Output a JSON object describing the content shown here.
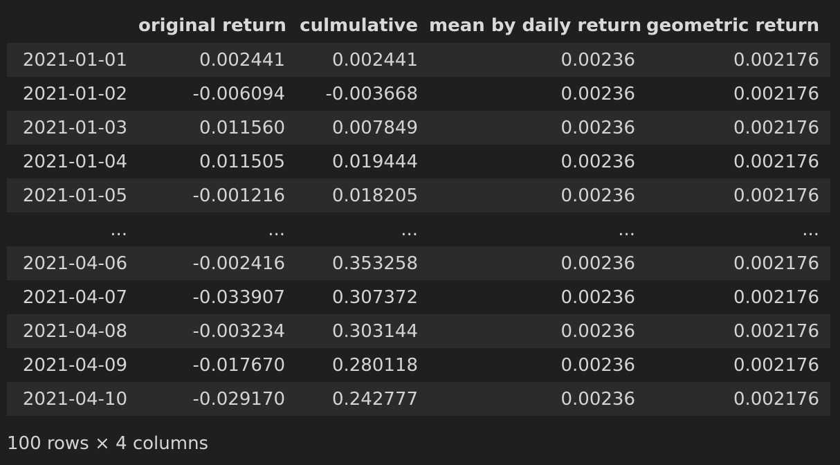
{
  "table": {
    "columns": [
      "",
      "original return",
      "culmulative",
      "mean by daily return",
      "geometric return"
    ],
    "rows": [
      [
        "2021-01-01",
        "0.002441",
        "0.002441",
        "0.00236",
        "0.002176"
      ],
      [
        "2021-01-02",
        "-0.006094",
        "-0.003668",
        "0.00236",
        "0.002176"
      ],
      [
        "2021-01-03",
        "0.011560",
        "0.007849",
        "0.00236",
        "0.002176"
      ],
      [
        "2021-01-04",
        "0.011505",
        "0.019444",
        "0.00236",
        "0.002176"
      ],
      [
        "2021-01-05",
        "-0.001216",
        "0.018205",
        "0.00236",
        "0.002176"
      ],
      [
        "...",
        "...",
        "...",
        "...",
        "..."
      ],
      [
        "2021-04-06",
        "-0.002416",
        "0.353258",
        "0.00236",
        "0.002176"
      ],
      [
        "2021-04-07",
        "-0.033907",
        "0.307372",
        "0.00236",
        "0.002176"
      ],
      [
        "2021-04-08",
        "-0.003234",
        "0.303144",
        "0.00236",
        "0.002176"
      ],
      [
        "2021-04-09",
        "-0.017670",
        "0.280118",
        "0.00236",
        "0.002176"
      ],
      [
        "2021-04-10",
        "-0.029170",
        "0.242777",
        "0.00236",
        "0.002176"
      ]
    ]
  },
  "footer": "100 rows × 4 columns"
}
